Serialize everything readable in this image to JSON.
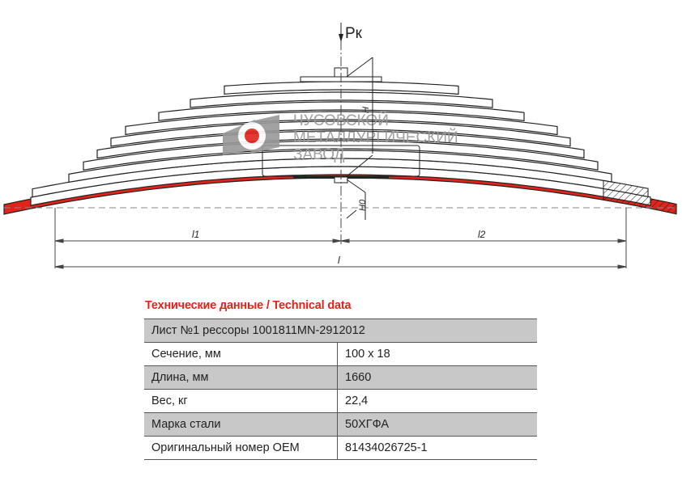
{
  "drawing": {
    "load_label": "Pк",
    "height_label": "H",
    "height0_label": "H0",
    "l1_label": "l1",
    "l2_label": "l2",
    "l_label": "l",
    "logo_text": [
      "ЧУСОВСКОЙ",
      "МЕТАЛЛУРГИЧЕСКИЙ",
      "ЗАВОД"
    ],
    "highlight_color": "#e2231a"
  },
  "table": {
    "title": "Технические данные / Technical data",
    "header": "Лист №1 рессоры 1001811MN-2912012",
    "rows": [
      {
        "label": "Сечение, мм",
        "value": "100 x 18"
      },
      {
        "label": "Длина, мм",
        "value": "1660"
      },
      {
        "label": "Вес, кг",
        "value": "22,4"
      },
      {
        "label": "Марка стали",
        "value": "50ХГФА"
      },
      {
        "label": "Оригинальный номер OEM",
        "value": "81434026725-1"
      }
    ]
  }
}
